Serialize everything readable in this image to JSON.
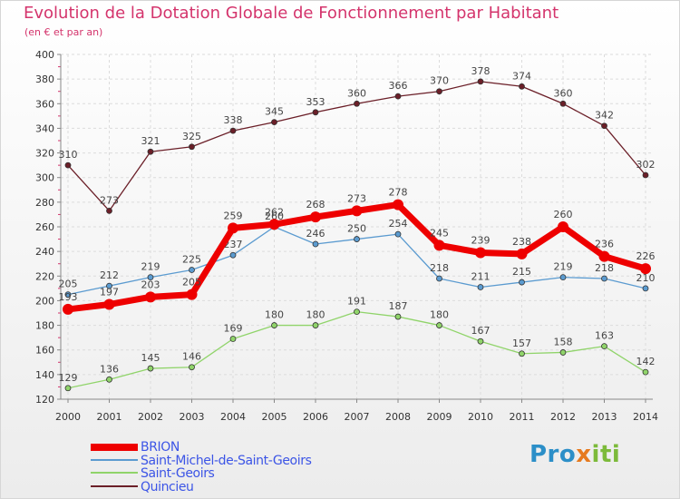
{
  "title": "Evolution de la Dotation Globale de Fonctionnement par Habitant",
  "subtitle": "(en € et par an)",
  "logo": "Proxiti",
  "chart_data": {
    "type": "line",
    "title": "Evolution de la Dotation Globale de Fonctionnement par Habitant",
    "ylabel": "(en € et par an)",
    "x": [
      2000,
      2001,
      2002,
      2003,
      2004,
      2005,
      2006,
      2007,
      2008,
      2009,
      2010,
      2011,
      2012,
      2013,
      2014
    ],
    "ylim": [
      120,
      400
    ],
    "yticks": [
      120,
      140,
      160,
      180,
      200,
      220,
      240,
      260,
      280,
      300,
      320,
      340,
      360,
      380,
      400
    ],
    "grid": true,
    "series": [
      {
        "name": "Quincieu",
        "color": "#6b1f28",
        "values": [
          310,
          273,
          321,
          325,
          338,
          345,
          353,
          360,
          366,
          370,
          378,
          374,
          360,
          342,
          302
        ]
      },
      {
        "name": "Saint-Geoirs",
        "color": "#90d46a",
        "values": [
          129,
          136,
          145,
          146,
          169,
          180,
          180,
          191,
          187,
          180,
          167,
          157,
          158,
          163,
          142
        ]
      },
      {
        "name": "Saint-Michel-de-Saint-Geoirs",
        "color": "#5b9bd0",
        "values": [
          205,
          212,
          219,
          225,
          237,
          260,
          246,
          250,
          254,
          218,
          211,
          215,
          219,
          218,
          210
        ]
      },
      {
        "name": "BRION",
        "color": "#ee0000",
        "values": [
          193,
          197,
          203,
          205,
          259,
          262,
          268,
          273,
          278,
          245,
          239,
          238,
          260,
          236,
          226
        ]
      }
    ],
    "legend": [
      "BRION",
      "Saint-Michel-de-Saint-Geoirs",
      "Saint-Geoirs",
      "Quincieu"
    ],
    "legend_position": "bottom-left"
  }
}
